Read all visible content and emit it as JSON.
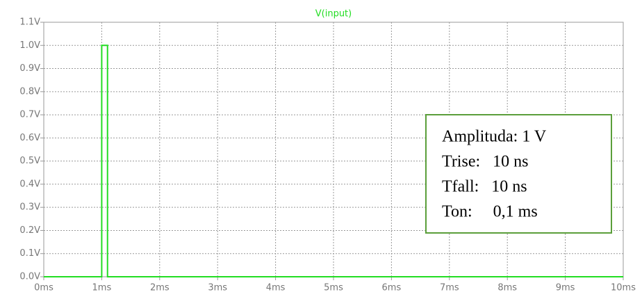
{
  "chart_data": {
    "type": "line",
    "title": "V(input)",
    "x": [
      0,
      1,
      1,
      1.1,
      1.1,
      10
    ],
    "series": [
      {
        "name": "V(input)",
        "color": "#22dd22",
        "values": [
          0,
          0,
          1,
          1,
          0,
          0
        ]
      }
    ],
    "xlim": [
      0,
      10
    ],
    "xticks": [
      {
        "value": 0,
        "label": "0ms"
      },
      {
        "value": 1,
        "label": "1ms"
      },
      {
        "value": 2,
        "label": "2ms"
      },
      {
        "value": 3,
        "label": "3ms"
      },
      {
        "value": 4,
        "label": "4ms"
      },
      {
        "value": 5,
        "label": "5ms"
      },
      {
        "value": 6,
        "label": "6ms"
      },
      {
        "value": 7,
        "label": "7ms"
      },
      {
        "value": 8,
        "label": "8ms"
      },
      {
        "value": 9,
        "label": "9ms"
      },
      {
        "value": 10,
        "label": "10ms"
      }
    ],
    "ylim": [
      0,
      1.1
    ],
    "yticks": [
      {
        "value": 0,
        "label": "0.0V"
      },
      {
        "value": 0.1,
        "label": "0.1V"
      },
      {
        "value": 0.2,
        "label": "0.2V"
      },
      {
        "value": 0.3,
        "label": "0.3V"
      },
      {
        "value": 0.4,
        "label": "0.4V"
      },
      {
        "value": 0.5,
        "label": "0.5V"
      },
      {
        "value": 0.6,
        "label": "0.6V"
      },
      {
        "value": 0.7,
        "label": "0.7V"
      },
      {
        "value": 0.8,
        "label": "0.8V"
      },
      {
        "value": 0.9,
        "label": "0.9V"
      },
      {
        "value": 1.0,
        "label": "1.0V"
      },
      {
        "value": 1.1,
        "label": "1.1V"
      }
    ],
    "grid": true,
    "annotations": [
      "Amplituda: 1 V",
      "Trise:   10 ns",
      "Tfall:   10 ns",
      "Ton:     0,1 ms"
    ]
  }
}
